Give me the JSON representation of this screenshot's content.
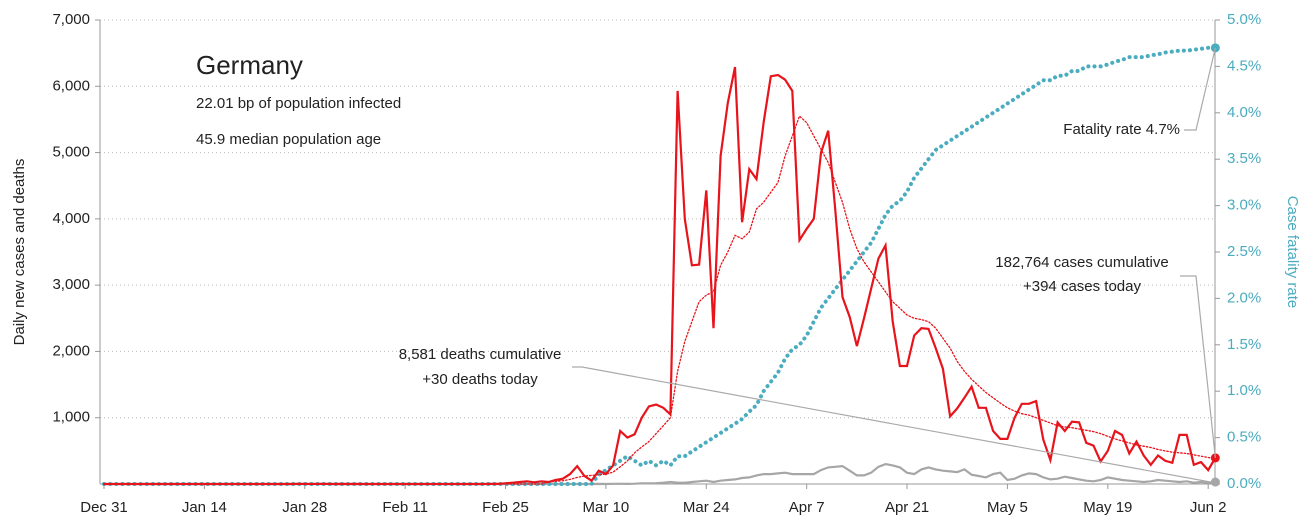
{
  "chart_data": {
    "type": "line",
    "title": "Germany",
    "annotations": [
      "22.01 bp of population infected",
      "45.9 median population age",
      "Fatality rate 4.7%",
      "182,764 cases cumulative",
      "+394 cases today",
      "8,581 deaths cumulative",
      "+30 deaths today"
    ],
    "ylabel": "Daily new cases and deaths",
    "y2label": "Case fatality rate",
    "categories": [
      "Dec 31",
      null,
      null,
      null,
      null,
      null,
      null,
      null,
      null,
      null,
      null,
      null,
      null,
      null,
      "Jan 14",
      null,
      null,
      null,
      null,
      null,
      null,
      null,
      null,
      null,
      null,
      null,
      null,
      null,
      "Jan 28",
      null,
      null,
      null,
      null,
      null,
      null,
      null,
      null,
      null,
      null,
      null,
      null,
      null,
      "Feb 11",
      null,
      null,
      null,
      null,
      null,
      null,
      null,
      null,
      null,
      null,
      null,
      null,
      null,
      "Feb 25",
      null,
      null,
      null,
      null,
      null,
      null,
      null,
      null,
      null,
      null,
      null,
      null,
      null,
      "Mar 10",
      null,
      null,
      null,
      null,
      null,
      null,
      null,
      null,
      null,
      null,
      null,
      null,
      null,
      "Mar 24",
      null,
      null,
      null,
      null,
      null,
      null,
      null,
      null,
      null,
      null,
      null,
      null,
      null,
      "Apr 7",
      null,
      null,
      null,
      null,
      null,
      null,
      null,
      null,
      null,
      null,
      null,
      null,
      null,
      "Apr 21",
      null,
      null,
      null,
      null,
      null,
      null,
      null,
      null,
      null,
      null,
      null,
      null,
      null,
      "May 5",
      null,
      null,
      null,
      null,
      null,
      null,
      null,
      null,
      null,
      null,
      null,
      null,
      null,
      "May 19",
      null,
      null,
      null,
      null,
      null,
      null,
      null,
      null,
      null,
      null,
      null,
      null,
      null,
      "Jun 2",
      null
    ],
    "series": [
      {
        "color": "#e8141c",
        "dash": "solid",
        "axis": "y",
        "values": [
          0,
          0,
          0,
          0,
          0,
          0,
          0,
          0,
          0,
          0,
          0,
          0,
          0,
          0,
          0,
          0,
          0,
          0,
          0,
          0,
          0,
          0,
          0,
          0,
          0,
          0,
          0,
          1,
          3,
          0,
          1,
          2,
          0,
          1,
          0,
          2,
          0,
          0,
          0,
          0,
          0,
          0,
          0,
          0,
          0,
          0,
          0,
          0,
          0,
          0,
          0,
          0,
          0,
          0,
          2,
          2,
          10,
          20,
          30,
          40,
          25,
          40,
          30,
          60,
          80,
          150,
          270,
          120,
          50,
          200,
          150,
          280,
          800,
          700,
          750,
          1000,
          1170,
          1200,
          1150,
          1050,
          5930,
          4000,
          3300,
          3310,
          4430,
          2350,
          4950,
          5750,
          6290,
          3950,
          4750,
          4600,
          5450,
          6150,
          6170,
          6100,
          5930,
          3680,
          3850,
          4000,
          5000,
          5330,
          4130,
          2820,
          2520,
          2080,
          2500,
          2950,
          3400,
          3600,
          2450,
          1780,
          1780,
          2240,
          2350,
          2340,
          2050,
          1740,
          1020,
          1140,
          1300,
          1470,
          1150,
          1150,
          800,
          680,
          680,
          1000,
          1210,
          1210,
          1250,
          670,
          360,
          930,
          800,
          940,
          930,
          620,
          580,
          340,
          500,
          800,
          740,
          460,
          640,
          430,
          290,
          430,
          350,
          320,
          740,
          740,
          290,
          330,
          210,
          394
        ]
      },
      {
        "color": "#e8141c",
        "dash": "dotted",
        "axis": "y",
        "values": [
          0,
          0,
          0,
          0,
          0,
          0,
          0,
          0,
          0,
          0,
          0,
          0,
          0,
          0,
          0,
          0,
          0,
          0,
          0,
          0,
          0,
          0,
          0,
          0,
          0,
          0,
          0,
          0,
          0,
          0,
          0,
          0,
          0,
          0,
          0,
          0,
          0,
          0,
          0,
          0,
          0,
          0,
          0,
          0,
          0,
          0,
          0,
          0,
          0,
          0,
          0,
          0,
          0,
          0,
          0,
          0,
          0,
          0,
          0,
          0,
          0,
          0,
          30,
          40,
          50,
          70,
          100,
          120,
          130,
          140,
          150,
          180,
          260,
          350,
          470,
          560,
          640,
          760,
          880,
          1000,
          1700,
          2150,
          2450,
          2750,
          2850,
          2900,
          3300,
          3500,
          3750,
          3700,
          3800,
          4150,
          4250,
          4400,
          4550,
          4950,
          5250,
          5550,
          5450,
          5250,
          5050,
          4850,
          4550,
          4250,
          3850,
          3550,
          3350,
          3200,
          3050,
          2900,
          2750,
          2650,
          2550,
          2500,
          2480,
          2450,
          2350,
          2200,
          2050,
          1850,
          1700,
          1580,
          1480,
          1380,
          1300,
          1220,
          1150,
          1100,
          1060,
          1040,
          1000,
          960,
          920,
          880,
          860,
          850,
          830,
          810,
          790,
          760,
          720,
          680,
          650,
          620,
          590,
          570,
          550,
          520,
          500,
          480,
          470,
          460,
          440,
          420,
          400,
          380
        ]
      },
      {
        "color": "#a6a6a6",
        "dash": "solid",
        "axis": "y",
        "values": [
          0,
          0,
          0,
          0,
          0,
          0,
          0,
          0,
          0,
          0,
          0,
          0,
          0,
          0,
          0,
          0,
          0,
          0,
          0,
          0,
          0,
          0,
          0,
          0,
          0,
          0,
          0,
          0,
          0,
          0,
          0,
          0,
          0,
          0,
          0,
          0,
          0,
          0,
          0,
          0,
          0,
          0,
          0,
          0,
          0,
          0,
          0,
          0,
          0,
          0,
          0,
          0,
          0,
          0,
          0,
          0,
          0,
          0,
          0,
          0,
          0,
          0,
          0,
          0,
          0,
          0,
          0,
          0,
          0,
          2,
          0,
          3,
          3,
          2,
          5,
          10,
          10,
          12,
          20,
          30,
          20,
          20,
          30,
          40,
          50,
          30,
          50,
          60,
          70,
          90,
          100,
          130,
          150,
          150,
          160,
          170,
          150,
          150,
          150,
          150,
          210,
          250,
          260,
          270,
          200,
          130,
          130,
          170,
          260,
          300,
          280,
          250,
          170,
          150,
          220,
          250,
          220,
          200,
          190,
          180,
          220,
          140,
          120,
          100,
          150,
          170,
          60,
          80,
          130,
          160,
          150,
          100,
          70,
          80,
          110,
          90,
          70,
          50,
          40,
          60,
          100,
          80,
          60,
          50,
          40,
          30,
          40,
          60,
          50,
          40,
          30,
          40,
          20,
          30,
          20,
          30
        ]
      },
      {
        "color": "#4aacbf",
        "dash": "dotted",
        "axis": "y2",
        "values": [
          0,
          0,
          0,
          0,
          0,
          0,
          0,
          0,
          0,
          0,
          0,
          0,
          0,
          0,
          0,
          0,
          0,
          0,
          0,
          0,
          0,
          0,
          0,
          0,
          0,
          0,
          0,
          0,
          0,
          0,
          0,
          0,
          0,
          0,
          0,
          0,
          0,
          0,
          0,
          0,
          0,
          0,
          0,
          0,
          0,
          0,
          0,
          0,
          0,
          0,
          0,
          0,
          0,
          0,
          0,
          0,
          0,
          0,
          0,
          0,
          0,
          0,
          0,
          0,
          0,
          0,
          0,
          0,
          0,
          0.1,
          0.15,
          0.2,
          0.25,
          0.3,
          0.25,
          0.2,
          0.25,
          0.2,
          0.25,
          0.2,
          0.3,
          0.3,
          0.35,
          0.4,
          0.45,
          0.5,
          0.55,
          0.6,
          0.65,
          0.7,
          0.78,
          0.85,
          1.0,
          1.1,
          1.2,
          1.35,
          1.45,
          1.5,
          1.6,
          1.75,
          1.9,
          2.0,
          2.1,
          2.2,
          2.3,
          2.4,
          2.5,
          2.6,
          2.75,
          2.9,
          3.0,
          3.05,
          3.15,
          3.3,
          3.4,
          3.5,
          3.6,
          3.65,
          3.7,
          3.75,
          3.8,
          3.85,
          3.9,
          3.95,
          4.0,
          4.05,
          4.1,
          4.15,
          4.2,
          4.25,
          4.3,
          4.35,
          4.35,
          4.4,
          4.4,
          4.45,
          4.45,
          4.5,
          4.5,
          4.5,
          4.52,
          4.55,
          4.57,
          4.6,
          4.6,
          4.6,
          4.62,
          4.63,
          4.65,
          4.66,
          4.67,
          4.67,
          4.68,
          4.69,
          4.7,
          4.7
        ]
      }
    ],
    "ylim": [
      0,
      7000
    ],
    "yticks": [
      {
        "value": 1000,
        "label": "1,000"
      },
      {
        "value": 2000,
        "label": "2,000"
      },
      {
        "value": 3000,
        "label": "3,000"
      },
      {
        "value": 4000,
        "label": "4,000"
      },
      {
        "value": 5000,
        "label": "5,000"
      },
      {
        "value": 6000,
        "label": "6,000"
      },
      {
        "value": 7000,
        "label": "7,000"
      }
    ],
    "y2lim": [
      0,
      5
    ],
    "y2ticks": [
      {
        "value": 0,
        "label": "0.0%"
      },
      {
        "value": 0.5,
        "label": "0.5%"
      },
      {
        "value": 1,
        "label": "1.0%"
      },
      {
        "value": 1.5,
        "label": "1.5%"
      },
      {
        "value": 2,
        "label": "2.0%"
      },
      {
        "value": 2.5,
        "label": "2.5%"
      },
      {
        "value": 3,
        "label": "3.0%"
      },
      {
        "value": 3.5,
        "label": "3.5%"
      },
      {
        "value": 4,
        "label": "4.0%"
      },
      {
        "value": 4.5,
        "label": "4.5%"
      },
      {
        "value": 5,
        "label": "5.0%"
      }
    ],
    "y2color": "#4aacbf",
    "grid": true
  }
}
